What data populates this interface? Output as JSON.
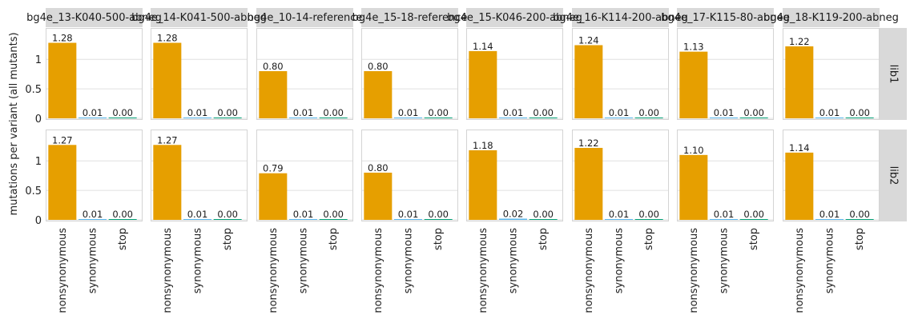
{
  "chart_data": {
    "type": "bar",
    "ylabel": "mutations per variant (all mutants)",
    "categories": [
      "nonsynonymous",
      "synonymous",
      "stop"
    ],
    "category_colors": [
      "#E69F00",
      "#56B4E9",
      "#009E73"
    ],
    "ylim": [
      0,
      1.45
    ],
    "yticks": [
      0,
      0.5,
      1
    ],
    "ytick_labels": [
      "0",
      "0.5",
      "1"
    ],
    "grid": true,
    "columns": [
      "bg4e_13-K040-500-abneg",
      "bg4e_14-K041-500-abneg",
      "bg4e_10-14-reference",
      "bg4e_15-18-reference",
      "bg4e_15-K046-200-abneg",
      "bg4e_16-K114-200-abneg",
      "bg4e_17-K115-80-abneg",
      "bg4e_18-K119-200-abneg"
    ],
    "rows": [
      "lib1",
      "lib2"
    ],
    "values": [
      [
        [
          1.28,
          0.01,
          0.0
        ],
        [
          1.28,
          0.01,
          0.0
        ],
        [
          0.8,
          0.01,
          0.0
        ],
        [
          0.8,
          0.01,
          0.0
        ],
        [
          1.14,
          0.01,
          0.0
        ],
        [
          1.24,
          0.01,
          0.0
        ],
        [
          1.13,
          0.01,
          0.0
        ],
        [
          1.22,
          0.01,
          0.0
        ]
      ],
      [
        [
          1.27,
          0.01,
          0.0
        ],
        [
          1.27,
          0.01,
          0.0
        ],
        [
          0.79,
          0.01,
          0.0
        ],
        [
          0.8,
          0.01,
          0.0
        ],
        [
          1.18,
          0.02,
          0.0
        ],
        [
          1.22,
          0.01,
          0.0
        ],
        [
          1.1,
          0.01,
          0.0
        ],
        [
          1.14,
          0.01,
          0.0
        ]
      ]
    ],
    "value_labels": [
      [
        [
          "1.28",
          "0.01",
          "0.00"
        ],
        [
          "1.28",
          "0.01",
          "0.00"
        ],
        [
          "0.80",
          "0.01",
          "0.00"
        ],
        [
          "0.80",
          "0.01",
          "0.00"
        ],
        [
          "1.14",
          "0.01",
          "0.00"
        ],
        [
          "1.24",
          "0.01",
          "0.00"
        ],
        [
          "1.13",
          "0.01",
          "0.00"
        ],
        [
          "1.22",
          "0.01",
          "0.00"
        ]
      ],
      [
        [
          "1.27",
          "0.01",
          "0.00"
        ],
        [
          "1.27",
          "0.01",
          "0.00"
        ],
        [
          "0.79",
          "0.01",
          "0.00"
        ],
        [
          "0.80",
          "0.01",
          "0.00"
        ],
        [
          "1.18",
          "0.02",
          "0.00"
        ],
        [
          "1.22",
          "0.01",
          "0.00"
        ],
        [
          "1.10",
          "0.01",
          "0.00"
        ],
        [
          "1.14",
          "0.01",
          "0.00"
        ]
      ]
    ]
  }
}
